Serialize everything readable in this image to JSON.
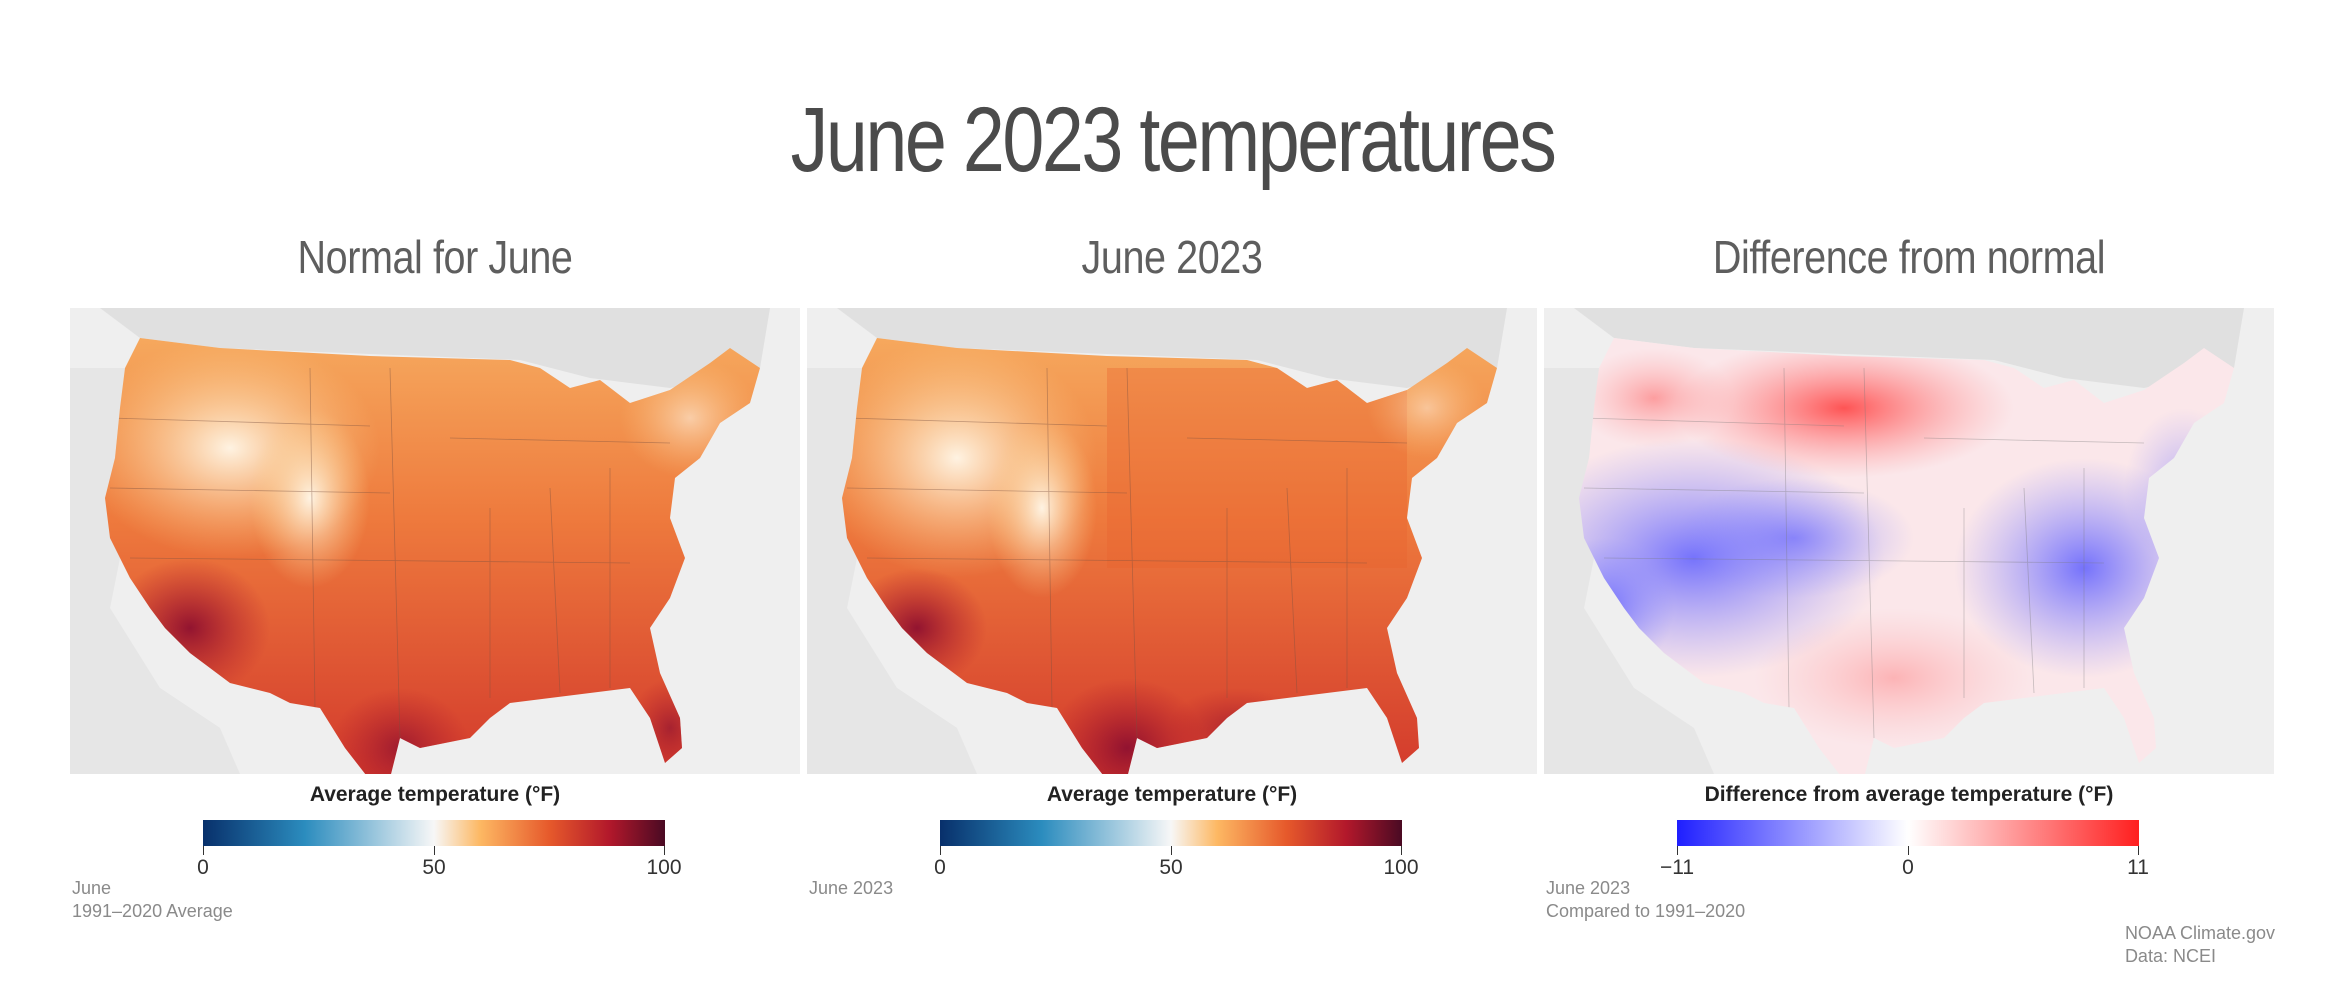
{
  "title": "June 2023 temperatures",
  "panels": [
    {
      "title": "Normal for June",
      "legend_title": "Average temperature (°F)",
      "ticks": [
        "0",
        "50",
        "100"
      ],
      "colorscale": [
        "#08306b",
        "#2b8cbe",
        "#f7f7f7",
        "#fdb863",
        "#e6592b",
        "#b2182b",
        "#4a0a23"
      ],
      "footnote": [
        "June",
        "1991–2020 Average"
      ]
    },
    {
      "title": "June 2023",
      "legend_title": "Average temperature (°F)",
      "ticks": [
        "0",
        "50",
        "100"
      ],
      "colorscale": [
        "#08306b",
        "#2b8cbe",
        "#f7f7f7",
        "#fdb863",
        "#e6592b",
        "#b2182b",
        "#4a0a23"
      ],
      "footnote": [
        "June 2023"
      ]
    },
    {
      "title": "Difference from normal",
      "legend_title": "Difference from average temperature (°F)",
      "ticks": [
        "−11",
        "0",
        "11"
      ],
      "colorscale": [
        "#1f1fff",
        "#ffffff",
        "#ff1f1f"
      ],
      "footnote": [
        "June 2023",
        "Compared to 1991–2020"
      ]
    }
  ],
  "credit": [
    "NOAA Climate.gov",
    "Data: NCEI"
  ]
}
